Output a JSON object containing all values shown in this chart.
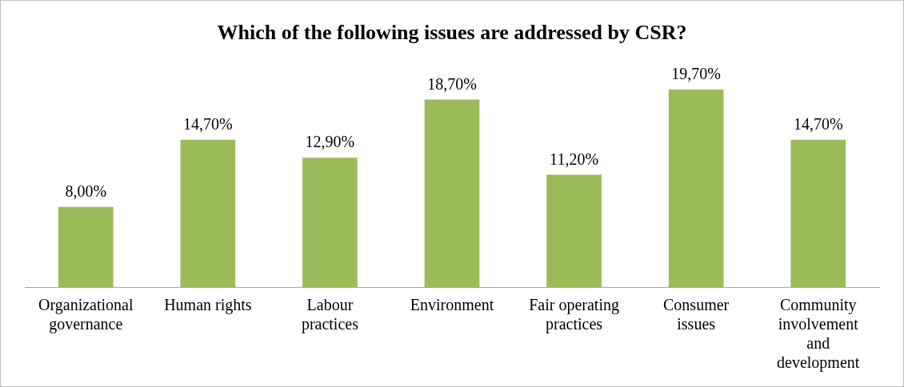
{
  "chart_data": {
    "type": "bar",
    "title": "Which of the following issues are addressed by CSR?",
    "categories": [
      "Organizational governance",
      "Human rights",
      "Labour practices",
      "Environment",
      "Fair operating practices",
      "Consumer issues",
      "Community involvement and development"
    ],
    "values": [
      8,
      14.7,
      12.9,
      18.7,
      11.2,
      19.7,
      14.7
    ],
    "value_labels": [
      "8,00%",
      "14,70%",
      "12,90%",
      "18,70%",
      "11,20%",
      "19,70%",
      "14,70%"
    ],
    "color": "#9bbb59",
    "tick_labels": "x",
    "grid": false,
    "legend": false
  }
}
